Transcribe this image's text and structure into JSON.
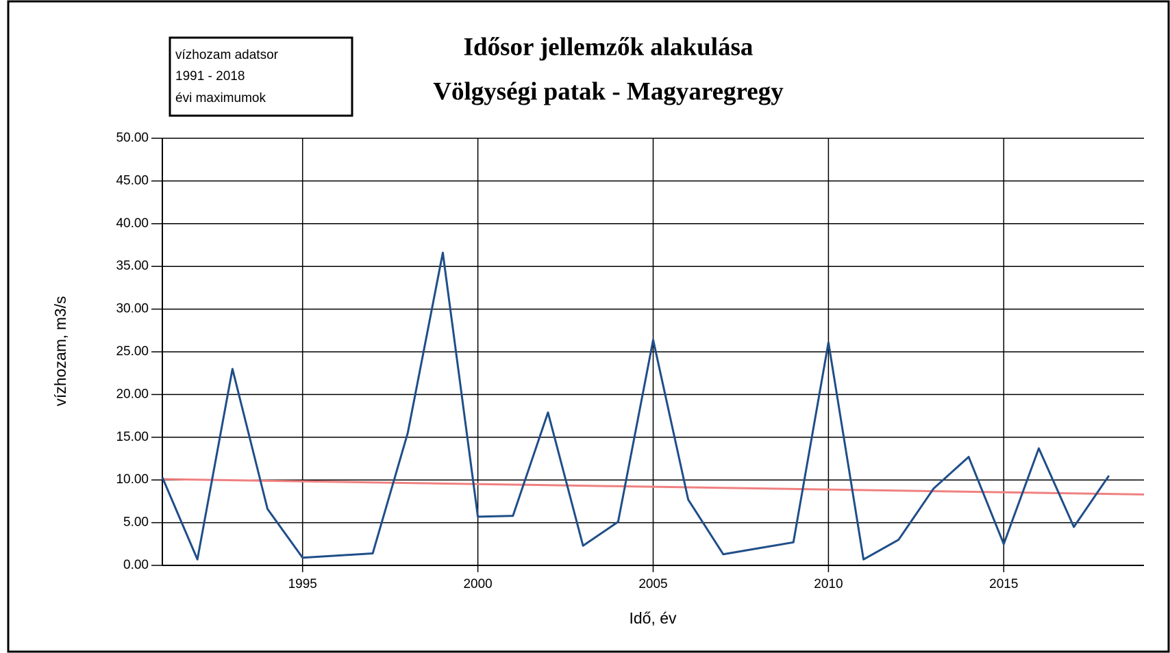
{
  "chart_data": {
    "type": "line",
    "title": "Idősor jellemzők alakulása",
    "subtitle": "Völgységi patak - Magyaregregy",
    "annotation": [
      "vízhozam adatsor",
      "1991 - 2018",
      "évi  maximumok"
    ],
    "xlabel": "Idő, év",
    "ylabel": "vízhozam, m3/s",
    "x": [
      1991,
      1992,
      1993,
      1994,
      1995,
      1996,
      1997,
      1998,
      1999,
      2000,
      2001,
      2002,
      2003,
      2004,
      2005,
      2006,
      2007,
      2008,
      2009,
      2010,
      2011,
      2012,
      2013,
      2014,
      2015,
      2016,
      2017,
      2018
    ],
    "series": [
      {
        "color": "#1f4e89",
        "values": [
          10.3,
          0.7,
          23.0,
          6.6,
          0.9,
          1.15,
          1.4,
          15.5,
          36.6,
          5.7,
          5.8,
          17.9,
          2.3,
          5.1,
          26.4,
          7.7,
          1.3,
          2.0,
          2.7,
          26.1,
          0.7,
          3.0,
          9.0,
          12.7,
          2.5,
          13.7,
          4.5,
          10.5
        ]
      }
    ],
    "trend": {
      "x": [
        1991,
        2019
      ],
      "values": [
        10.1,
        8.3
      ],
      "color": "#f08080"
    },
    "xlim": [
      1991,
      2019
    ],
    "xticks": [
      1995,
      2000,
      2005,
      2010,
      2015
    ],
    "ylim": [
      0,
      50
    ],
    "yticks": [
      {
        "value": 0,
        "label": "0.00"
      },
      {
        "value": 5,
        "label": "5.00"
      },
      {
        "value": 10,
        "label": "10.00"
      },
      {
        "value": 15,
        "label": "15.00"
      },
      {
        "value": 20,
        "label": "20.00"
      },
      {
        "value": 25,
        "label": "25.00"
      },
      {
        "value": 30,
        "label": "30.00"
      },
      {
        "value": 35,
        "label": "35.00"
      },
      {
        "value": 40,
        "label": "40.00"
      },
      {
        "value": 45,
        "label": "45.00"
      },
      {
        "value": 50,
        "label": "50.00"
      }
    ],
    "grid": true
  }
}
